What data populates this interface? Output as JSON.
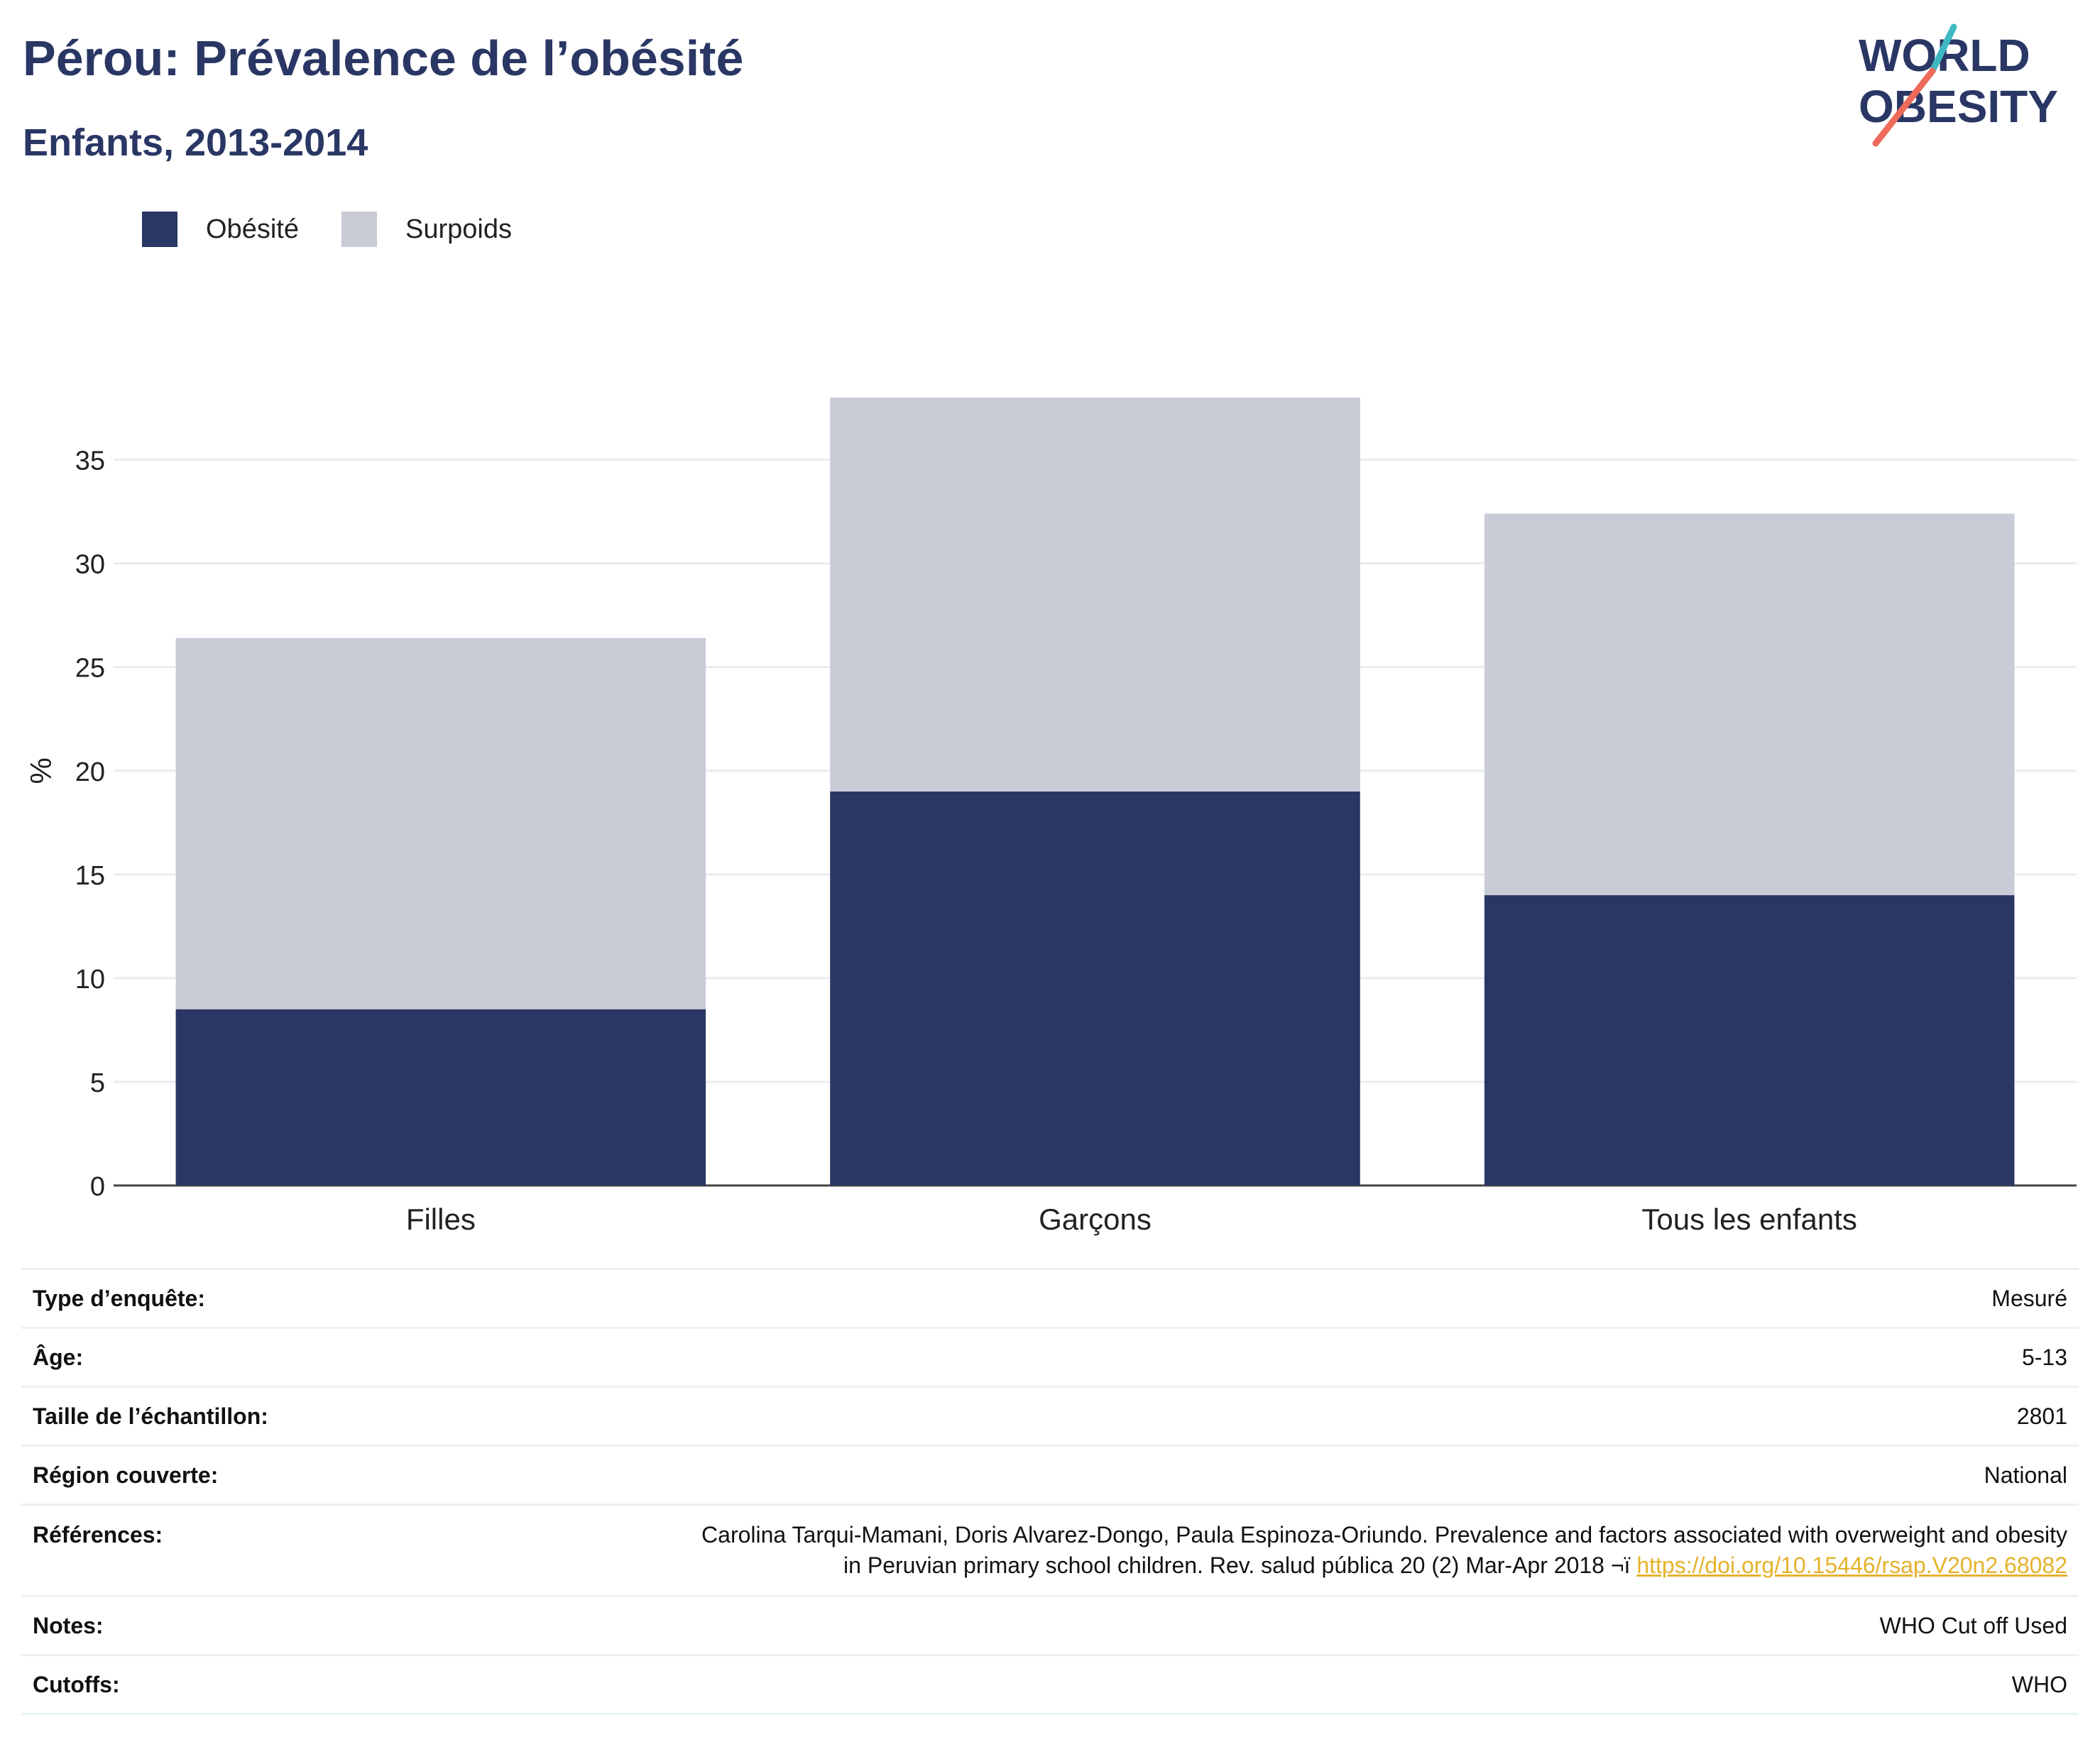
{
  "header": {
    "title": "Pérou: Prévalence de l’obésité",
    "subtitle": "Enfants, 2013-2014"
  },
  "logo": {
    "line1": "WORLD",
    "line2": "OBESITY"
  },
  "legend": [
    {
      "label": "Obésité",
      "color": "#2a3765"
    },
    {
      "label": "Surpoids",
      "color": "#c9ccd7"
    }
  ],
  "colors": {
    "obesity": "#2a3765",
    "overweight": "#c9ccd7",
    "accent_link": "#e5b22b",
    "logo_teal": "#3fb9c4",
    "logo_red": "#ee6a5a"
  },
  "chart_data": {
    "type": "bar",
    "stacked": true,
    "categories": [
      "Filles",
      "Garçons",
      "Tous les enfants"
    ],
    "series": [
      {
        "name": "Obésité",
        "values": [
          8.5,
          19.0,
          14.0
        ]
      },
      {
        "name": "Surpoids",
        "values": [
          17.9,
          19.0,
          18.4
        ]
      }
    ],
    "ylabel": "%",
    "xlabel": "",
    "ylim": [
      0,
      38
    ],
    "yticks": [
      0,
      5,
      10,
      15,
      20,
      25,
      30,
      35
    ],
    "grid": true
  },
  "meta": {
    "survey_type": {
      "label": "Type d’enquête:",
      "value": "Mesuré"
    },
    "age": {
      "label": "Âge:",
      "value": "5-13"
    },
    "sample_size": {
      "label": "Taille de l’échantillon:",
      "value": "2801"
    },
    "region": {
      "label": "Région couverte:",
      "value": "National"
    },
    "references": {
      "label": "Références:",
      "line1": "Carolina Tarqui-Mamani, Doris Alvarez-Dongo, Paula Espinoza-Oriundo. Prevalence and factors associated with overweight and obesity",
      "line2": "in Peruvian primary school children. Rev. salud pública 20 (2) Mar-Apr 2018 ¬ï ",
      "link": "https://doi.org/10.15446/rsap.V20n2.68082"
    },
    "notes": {
      "label": "Notes:",
      "value": "WHO Cut off Used"
    },
    "cutoffs": {
      "label": "Cutoffs:",
      "value": "WHO"
    }
  }
}
